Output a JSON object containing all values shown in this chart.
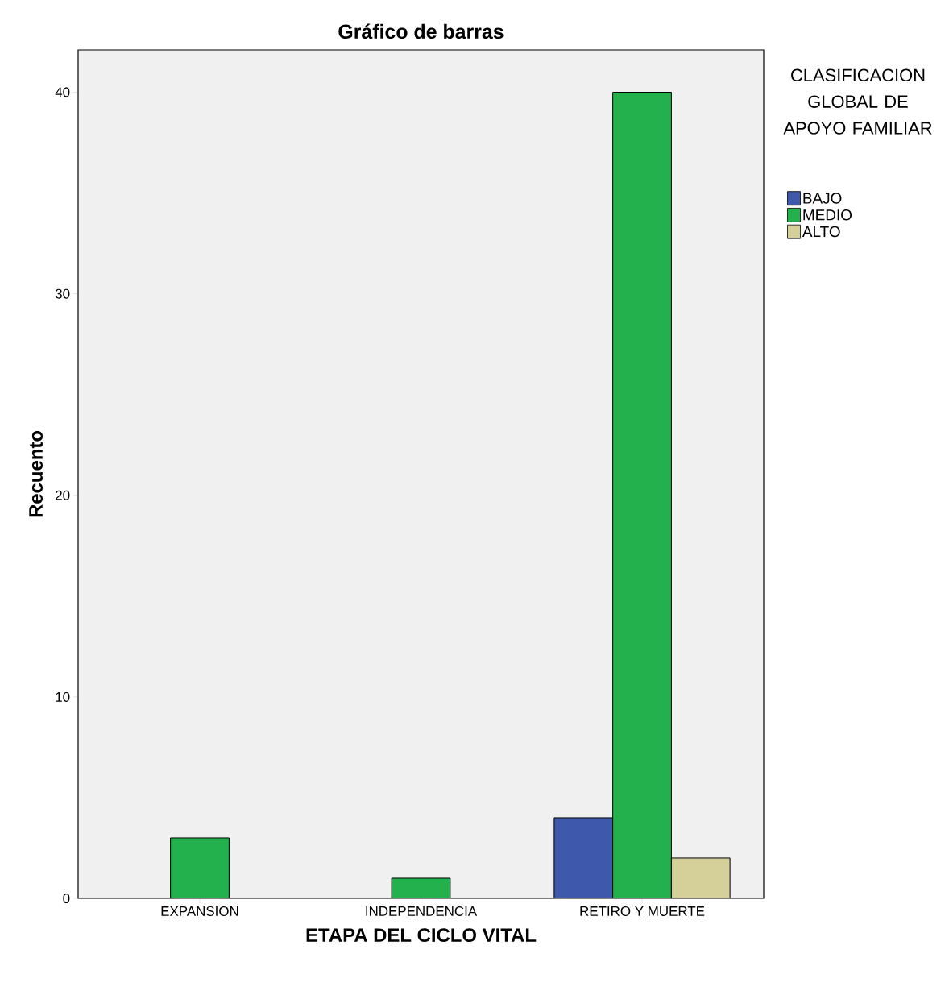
{
  "chart_data": {
    "type": "bar",
    "title": "Gráfico de barras",
    "xlabel": "ETAPA DEL CICLO VITAL",
    "ylabel": "Recuento",
    "categories": [
      "EXPANSION",
      "INDEPENDENCIA",
      "RETIRO Y MUERTE"
    ],
    "series": [
      {
        "name": "BAJO",
        "color": "#3e58ac",
        "values": [
          null,
          null,
          4
        ]
      },
      {
        "name": "MEDIO",
        "color": "#22b14c",
        "values": [
          3,
          1,
          40
        ]
      },
      {
        "name": "ALTO",
        "color": "#d5cf9a",
        "values": [
          null,
          null,
          2
        ]
      }
    ],
    "legend_title": "CLASIFICACION GLOBAL DE APOYO FAMILIAR",
    "legend": "right",
    "ylim": [
      0,
      42.1
    ],
    "yticks": [
      0,
      10,
      20,
      30,
      40
    ],
    "grid": false
  }
}
